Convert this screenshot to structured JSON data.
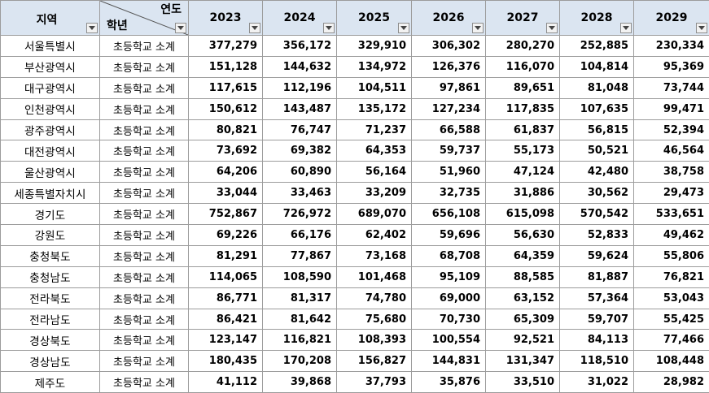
{
  "header": {
    "region_label": "지역",
    "diag_top_label": "연도",
    "diag_bottom_label": "학년",
    "years": [
      "2023",
      "2024",
      "2025",
      "2026",
      "2027",
      "2028",
      "2029"
    ]
  },
  "rows": [
    {
      "region": "서울특별시",
      "grade": "초등학교 소계",
      "values": [
        "377,279",
        "356,172",
        "329,910",
        "306,302",
        "280,270",
        "252,885",
        "230,334"
      ]
    },
    {
      "region": "부산광역시",
      "grade": "초등학교 소계",
      "values": [
        "151,128",
        "144,632",
        "134,972",
        "126,376",
        "116,070",
        "104,814",
        "95,369"
      ]
    },
    {
      "region": "대구광역시",
      "grade": "초등학교 소계",
      "values": [
        "117,615",
        "112,196",
        "104,511",
        "97,861",
        "89,651",
        "81,048",
        "73,744"
      ]
    },
    {
      "region": "인천광역시",
      "grade": "초등학교 소계",
      "values": [
        "150,612",
        "143,487",
        "135,172",
        "127,234",
        "117,835",
        "107,635",
        "99,471"
      ]
    },
    {
      "region": "광주광역시",
      "grade": "초등학교 소계",
      "values": [
        "80,821",
        "76,747",
        "71,237",
        "66,588",
        "61,837",
        "56,815",
        "52,394"
      ]
    },
    {
      "region": "대전광역시",
      "grade": "초등학교 소계",
      "values": [
        "73,692",
        "69,382",
        "64,353",
        "59,737",
        "55,173",
        "50,521",
        "46,564"
      ]
    },
    {
      "region": "울산광역시",
      "grade": "초등학교 소계",
      "values": [
        "64,206",
        "60,890",
        "56,164",
        "51,960",
        "47,124",
        "42,480",
        "38,758"
      ]
    },
    {
      "region": "세종특별자치시",
      "grade": "초등학교 소계",
      "values": [
        "33,044",
        "33,463",
        "33,209",
        "32,735",
        "31,886",
        "30,562",
        "29,473"
      ]
    },
    {
      "region": "경기도",
      "grade": "초등학교 소계",
      "values": [
        "752,867",
        "726,972",
        "689,070",
        "656,108",
        "615,098",
        "570,542",
        "533,651"
      ]
    },
    {
      "region": "강원도",
      "grade": "초등학교 소계",
      "values": [
        "69,226",
        "66,176",
        "62,402",
        "59,696",
        "56,630",
        "52,833",
        "49,462"
      ]
    },
    {
      "region": "충청북도",
      "grade": "초등학교 소계",
      "values": [
        "81,291",
        "77,867",
        "73,168",
        "68,708",
        "64,359",
        "59,624",
        "55,806"
      ]
    },
    {
      "region": "충청남도",
      "grade": "초등학교 소계",
      "values": [
        "114,065",
        "108,590",
        "101,468",
        "95,109",
        "88,585",
        "81,887",
        "76,821"
      ]
    },
    {
      "region": "전라북도",
      "grade": "초등학교 소계",
      "values": [
        "86,771",
        "81,317",
        "74,780",
        "69,000",
        "63,152",
        "57,364",
        "53,043"
      ]
    },
    {
      "region": "전라남도",
      "grade": "초등학교 소계",
      "values": [
        "86,421",
        "81,642",
        "75,680",
        "70,730",
        "65,309",
        "59,707",
        "55,425"
      ]
    },
    {
      "region": "경상북도",
      "grade": "초등학교 소계",
      "values": [
        "123,147",
        "116,821",
        "108,393",
        "100,554",
        "92,521",
        "84,113",
        "77,466"
      ]
    },
    {
      "region": "경상남도",
      "grade": "초등학교 소계",
      "values": [
        "180,435",
        "170,208",
        "156,827",
        "144,831",
        "131,347",
        "118,510",
        "108,448"
      ]
    },
    {
      "region": "제주도",
      "grade": "초등학교 소계",
      "values": [
        "41,112",
        "39,868",
        "37,793",
        "35,876",
        "33,510",
        "31,022",
        "28,982"
      ]
    }
  ],
  "colors": {
    "header_bg": "#dbe5f1",
    "grid": "#9c9c9c"
  },
  "icons": {
    "filter": "chevron-down-icon"
  }
}
